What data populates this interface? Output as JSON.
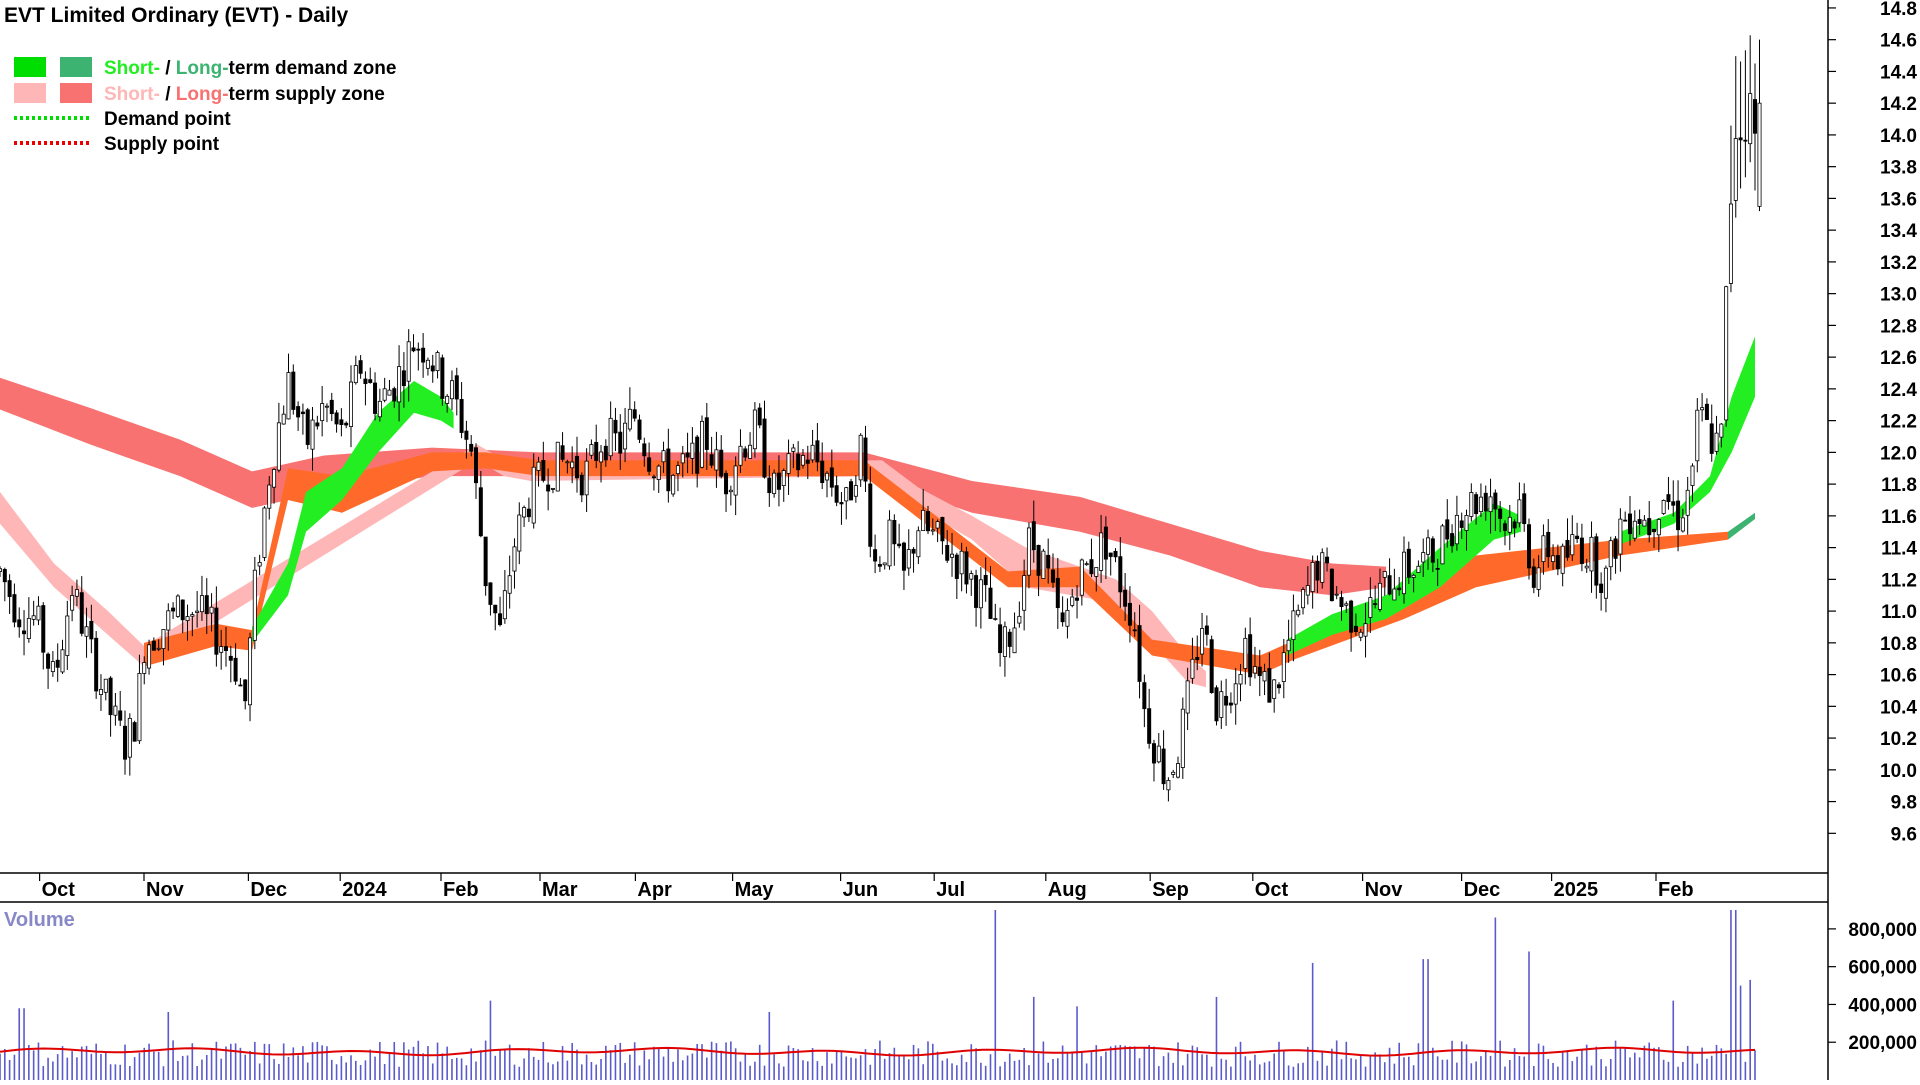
{
  "title": "EVT Limited Ordinary (EVT) - Daily",
  "colors": {
    "short_demand": "#22ee22",
    "long_demand": "#3cb371",
    "short_supply": "#ffb6b6",
    "long_supply": "#f87272",
    "mid_zone": "#ff6a2a",
    "demand_point": "#00dd00",
    "supply_point": "#ee0000",
    "volume_bar": "#5a5acd",
    "volume_avg": "#e00000",
    "volume_title": "#8888c8"
  },
  "legend": [
    {
      "id": "demand-zone",
      "parts": [
        {
          "text": "Short-",
          "color": "#22ee22"
        },
        {
          "text": " / ",
          "color": "#000000"
        },
        {
          "text": "Long-",
          "color": "#3cb371"
        },
        {
          "text": "term demand zone",
          "color": "#000000"
        }
      ],
      "swatches": [
        "#00dd00",
        "#3cb371"
      ]
    },
    {
      "id": "supply-zone",
      "parts": [
        {
          "text": "Short-",
          "color": "#ffb6b6"
        },
        {
          "text": " / ",
          "color": "#000000"
        },
        {
          "text": "Long-",
          "color": "#f87272"
        },
        {
          "text": "term supply zone",
          "color": "#000000"
        }
      ],
      "swatches": [
        "#ffb6b6",
        "#f87272"
      ]
    },
    {
      "id": "demand-point",
      "parts": [
        {
          "text": "Demand point",
          "color": "#000000"
        }
      ],
      "dotted": "#00dd00"
    },
    {
      "id": "supply-point",
      "parts": [
        {
          "text": "Supply point",
          "color": "#000000"
        }
      ],
      "dotted": "#ee0000"
    }
  ],
  "chart_data": {
    "type": "candlestick",
    "title": "EVT Limited Ordinary (EVT) - Daily",
    "price_axis": {
      "ticks": [
        "9.6",
        "9.8",
        "10.0",
        "10.2",
        "10.4",
        "10.6",
        "10.8",
        "11.0",
        "11.2",
        "11.4",
        "11.6",
        "11.8",
        "12.0",
        "12.2",
        "12.4",
        "12.6",
        "12.8",
        "13.0",
        "13.2",
        "13.4",
        "13.6",
        "13.8",
        "14.0",
        "14.2",
        "14.4",
        "14.6",
        "14.8"
      ],
      "range": [
        9.35,
        14.85
      ]
    },
    "months": [
      {
        "label": "Oct",
        "t": 0.022
      },
      {
        "label": "Nov",
        "t": 0.08
      },
      {
        "label": "Dec",
        "t": 0.138
      },
      {
        "label": "2024",
        "t": 0.189
      },
      {
        "label": "Feb",
        "t": 0.245
      },
      {
        "label": "Mar",
        "t": 0.3
      },
      {
        "label": "Apr",
        "t": 0.353
      },
      {
        "label": "May",
        "t": 0.407
      },
      {
        "label": "Jun",
        "t": 0.467
      },
      {
        "label": "Jul",
        "t": 0.519
      },
      {
        "label": "Aug",
        "t": 0.581
      },
      {
        "label": "Sep",
        "t": 0.639
      },
      {
        "label": "Oct",
        "t": 0.696
      },
      {
        "label": "Nov",
        "t": 0.757
      },
      {
        "label": "Dec",
        "t": 0.812
      },
      {
        "label": "2025",
        "t": 0.862
      },
      {
        "label": "Feb",
        "t": 0.92
      }
    ],
    "price_path": [
      [
        0.0,
        11.25
      ],
      [
        0.01,
        11.0
      ],
      [
        0.02,
        10.95
      ],
      [
        0.03,
        10.55
      ],
      [
        0.04,
        11.15
      ],
      [
        0.05,
        10.75
      ],
      [
        0.06,
        10.4
      ],
      [
        0.07,
        10.15
      ],
      [
        0.076,
        10.35
      ],
      [
        0.08,
        10.8
      ],
      [
        0.09,
        10.9
      ],
      [
        0.1,
        11.0
      ],
      [
        0.11,
        11.0
      ],
      [
        0.12,
        10.85
      ],
      [
        0.13,
        10.7
      ],
      [
        0.136,
        10.4
      ],
      [
        0.142,
        11.2
      ],
      [
        0.15,
        11.9
      ],
      [
        0.16,
        12.45
      ],
      [
        0.17,
        12.05
      ],
      [
        0.18,
        12.3
      ],
      [
        0.19,
        12.1
      ],
      [
        0.2,
        12.55
      ],
      [
        0.21,
        12.3
      ],
      [
        0.22,
        12.45
      ],
      [
        0.23,
        12.7
      ],
      [
        0.238,
        12.65
      ],
      [
        0.245,
        12.45
      ],
      [
        0.252,
        12.35
      ],
      [
        0.262,
        12.0
      ],
      [
        0.27,
        11.2
      ],
      [
        0.278,
        10.85
      ],
      [
        0.285,
        11.4
      ],
      [
        0.295,
        11.75
      ],
      [
        0.305,
        11.9
      ],
      [
        0.315,
        11.95
      ],
      [
        0.325,
        11.85
      ],
      [
        0.335,
        12.1
      ],
      [
        0.345,
        12.05
      ],
      [
        0.352,
        12.25
      ],
      [
        0.362,
        11.95
      ],
      [
        0.372,
        11.85
      ],
      [
        0.382,
        11.9
      ],
      [
        0.392,
        12.1
      ],
      [
        0.402,
        11.8
      ],
      [
        0.412,
        12.05
      ],
      [
        0.42,
        12.15
      ],
      [
        0.43,
        11.75
      ],
      [
        0.44,
        11.9
      ],
      [
        0.45,
        12.0
      ],
      [
        0.46,
        11.85
      ],
      [
        0.47,
        11.65
      ],
      [
        0.478,
        12.05
      ],
      [
        0.486,
        11.3
      ],
      [
        0.494,
        11.45
      ],
      [
        0.502,
        11.2
      ],
      [
        0.51,
        11.55
      ],
      [
        0.52,
        11.45
      ],
      [
        0.53,
        11.35
      ],
      [
        0.54,
        11.2
      ],
      [
        0.548,
        11.05
      ],
      [
        0.556,
        10.7
      ],
      [
        0.564,
        10.95
      ],
      [
        0.572,
        11.45
      ],
      [
        0.58,
        11.3
      ],
      [
        0.59,
        10.85
      ],
      [
        0.598,
        11.2
      ],
      [
        0.606,
        11.3
      ],
      [
        0.614,
        11.45
      ],
      [
        0.622,
        11.2
      ],
      [
        0.63,
        10.95
      ],
      [
        0.636,
        10.35
      ],
      [
        0.642,
        10.15
      ],
      [
        0.648,
        9.95
      ],
      [
        0.654,
        10.1
      ],
      [
        0.66,
        10.45
      ],
      [
        0.668,
        10.95
      ],
      [
        0.676,
        10.4
      ],
      [
        0.684,
        10.55
      ],
      [
        0.692,
        10.8
      ],
      [
        0.7,
        10.55
      ],
      [
        0.708,
        10.5
      ],
      [
        0.716,
        10.8
      ],
      [
        0.724,
        11.05
      ],
      [
        0.732,
        11.3
      ],
      [
        0.74,
        11.15
      ],
      [
        0.748,
        11.0
      ],
      [
        0.756,
        10.95
      ],
      [
        0.764,
        11.05
      ],
      [
        0.772,
        11.2
      ],
      [
        0.78,
        11.25
      ],
      [
        0.788,
        11.3
      ],
      [
        0.796,
        11.35
      ],
      [
        0.804,
        11.5
      ],
      [
        0.812,
        11.65
      ],
      [
        0.82,
        11.7
      ],
      [
        0.828,
        11.75
      ],
      [
        0.836,
        11.55
      ],
      [
        0.844,
        11.65
      ],
      [
        0.852,
        11.25
      ],
      [
        0.86,
        11.4
      ],
      [
        0.868,
        11.3
      ],
      [
        0.876,
        11.45
      ],
      [
        0.884,
        11.35
      ],
      [
        0.892,
        11.2
      ],
      [
        0.9,
        11.55
      ],
      [
        0.908,
        11.65
      ],
      [
        0.916,
        11.55
      ],
      [
        0.924,
        11.75
      ],
      [
        0.932,
        11.6
      ],
      [
        0.938,
        11.75
      ],
      [
        0.944,
        12.25
      ],
      [
        0.95,
        12.1
      ],
      [
        0.956,
        12.0
      ],
      [
        0.96,
        13.3
      ],
      [
        0.964,
        14.05
      ],
      [
        0.968,
        14.0
      ],
      [
        0.972,
        14.2
      ],
      [
        0.975,
        14.0
      ]
    ],
    "zones": [
      {
        "name": "long_supply",
        "color": "#f87272",
        "points": [
          [
            0.0,
            12.27,
            12.47
          ],
          [
            0.05,
            12.05,
            12.28
          ],
          [
            0.1,
            11.85,
            12.08
          ],
          [
            0.14,
            11.65,
            11.88
          ],
          [
            0.18,
            11.75,
            11.98
          ],
          [
            0.24,
            11.85,
            12.03
          ],
          [
            0.3,
            11.85,
            12.0
          ],
          [
            0.4,
            11.85,
            12.0
          ],
          [
            0.48,
            11.85,
            12.0
          ],
          [
            0.54,
            11.62,
            11.82
          ],
          [
            0.6,
            11.5,
            11.72
          ],
          [
            0.65,
            11.35,
            11.55
          ],
          [
            0.7,
            11.15,
            11.38
          ],
          [
            0.74,
            11.1,
            11.3
          ],
          [
            0.77,
            11.15,
            11.28
          ]
        ]
      },
      {
        "name": "short_supply",
        "color": "#ffb6b6",
        "points": [
          [
            0.0,
            11.55,
            11.75
          ],
          [
            0.03,
            11.15,
            11.3
          ],
          [
            0.06,
            10.85,
            11.0
          ],
          [
            0.08,
            10.65,
            10.78
          ],
          [
            0.265,
            11.95,
            12.05
          ],
          [
            0.28,
            11.85,
            11.95
          ],
          [
            0.295,
            11.82,
            11.92
          ],
          [
            0.49,
            11.85,
            11.95
          ],
          [
            0.51,
            11.65,
            11.78
          ],
          [
            0.54,
            11.45,
            11.6
          ],
          [
            0.57,
            11.15,
            11.4
          ],
          [
            0.62,
            11.05,
            11.2
          ],
          [
            0.64,
            10.8,
            11.0
          ],
          [
            0.66,
            10.55,
            10.72
          ],
          [
            0.67,
            10.52,
            10.62
          ]
        ]
      },
      {
        "name": "mid_zone",
        "color": "#ff6a2a",
        "points": [
          [
            0.08,
            10.65,
            10.8
          ],
          [
            0.12,
            10.78,
            10.92
          ],
          [
            0.14,
            10.75,
            10.88
          ],
          [
            0.16,
            11.7,
            11.9
          ],
          [
            0.19,
            11.62,
            11.85
          ],
          [
            0.24,
            11.88,
            12.0
          ],
          [
            0.27,
            11.9,
            12.0
          ],
          [
            0.3,
            11.85,
            11.95
          ],
          [
            0.48,
            11.85,
            11.95
          ],
          [
            0.56,
            11.15,
            11.25
          ],
          [
            0.6,
            11.15,
            11.28
          ],
          [
            0.64,
            10.72,
            10.82
          ],
          [
            0.7,
            10.6,
            10.72
          ],
          [
            0.72,
            10.7,
            10.82
          ],
          [
            0.78,
            10.95,
            11.12
          ],
          [
            0.82,
            11.15,
            11.35
          ],
          [
            0.86,
            11.25,
            11.4
          ],
          [
            0.9,
            11.35,
            11.45
          ],
          [
            0.96,
            11.45,
            11.5
          ]
        ]
      },
      {
        "name": "short_demand",
        "color": "#22ee22",
        "points": [
          [
            0.14,
            10.8,
            10.9
          ],
          [
            0.16,
            11.1,
            11.3
          ],
          [
            0.17,
            11.5,
            11.75
          ],
          [
            0.19,
            11.7,
            11.9
          ],
          [
            0.21,
            12.0,
            12.25
          ],
          [
            0.23,
            12.25,
            12.45
          ],
          [
            0.245,
            12.2,
            12.35
          ],
          [
            0.252,
            12.15,
            12.25
          ]
        ]
      },
      {
        "name": "short_demand_2",
        "color": "#22ee22",
        "points": [
          [
            0.715,
            10.72,
            10.82
          ],
          [
            0.74,
            10.85,
            10.98
          ],
          [
            0.77,
            10.95,
            11.1
          ],
          [
            0.8,
            11.15,
            11.4
          ],
          [
            0.83,
            11.45,
            11.68
          ],
          [
            0.845,
            11.5,
            11.6
          ]
        ]
      },
      {
        "name": "short_demand_3",
        "color": "#22ee22",
        "points": [
          [
            0.9,
            11.42,
            11.5
          ],
          [
            0.93,
            11.55,
            11.62
          ],
          [
            0.95,
            11.75,
            11.85
          ],
          [
            0.962,
            12.0,
            12.35
          ],
          [
            0.975,
            12.35,
            12.73
          ]
        ]
      },
      {
        "name": "long_demand",
        "color": "#3cb371",
        "points": [
          [
            0.96,
            11.45,
            11.5
          ],
          [
            0.975,
            11.58,
            11.62
          ]
        ]
      }
    ],
    "volume": {
      "title": "Volume",
      "ticks": [
        "200,000",
        "400,000",
        "600,000",
        "800,000"
      ],
      "range": [
        0,
        900000
      ],
      "avg_level": 150000,
      "spikes": [
        [
          0.012,
          380000
        ],
        [
          0.093,
          360000
        ],
        [
          0.272,
          420000
        ],
        [
          0.428,
          360000
        ],
        [
          0.553,
          900000
        ],
        [
          0.574,
          440000
        ],
        [
          0.598,
          390000
        ],
        [
          0.676,
          440000
        ],
        [
          0.728,
          620000
        ],
        [
          0.792,
          640000
        ],
        [
          0.832,
          860000
        ],
        [
          0.85,
          680000
        ],
        [
          0.93,
          420000
        ],
        [
          0.963,
          900000
        ],
        [
          0.967,
          500000
        ],
        [
          0.973,
          530000
        ]
      ]
    }
  }
}
